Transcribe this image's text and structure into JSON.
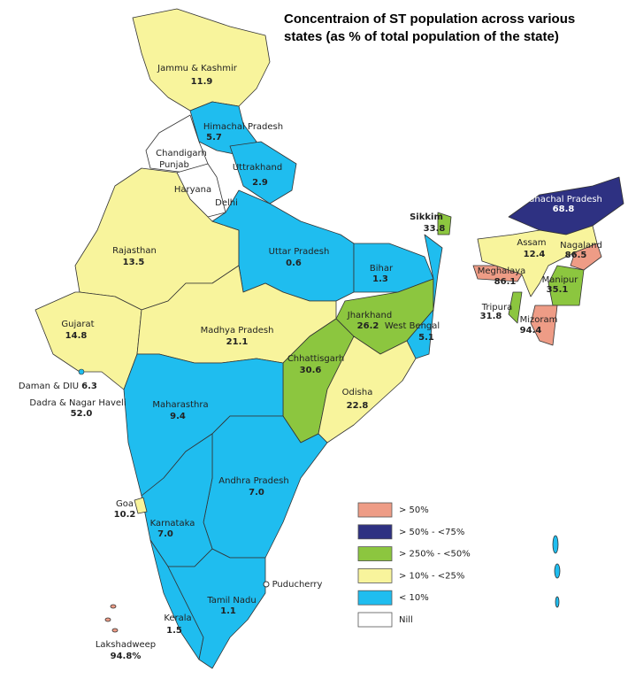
{
  "title": [
    "Concentraion of ST population across various",
    "states (as % of total population of the state)"
  ],
  "states": [
    {
      "name": "Jammu & Kashmir",
      "value": "11.9"
    },
    {
      "name": "Himachal Pradesh",
      "value": "5.7"
    },
    {
      "name": "Chandigarh"
    },
    {
      "name": "Punjab"
    },
    {
      "name": "Uttrakhand",
      "value": "2.9"
    },
    {
      "name": "Haryana"
    },
    {
      "name": "Delhi"
    },
    {
      "name": "Rajasthan",
      "value": "13.5"
    },
    {
      "name": "Uttar Pradesh",
      "value": "0.6"
    },
    {
      "name": "Sikkim",
      "value": "33.8"
    },
    {
      "name": "Arunachal Pradesh",
      "value": "68.8"
    },
    {
      "name": "Assam",
      "value": "12.4"
    },
    {
      "name": "Nagaland",
      "value": "86.5"
    },
    {
      "name": "Meghalaya",
      "value": "86.1"
    },
    {
      "name": "Bihar",
      "value": "1.3"
    },
    {
      "name": "Manipur",
      "value": "35.1"
    },
    {
      "name": "Tripura",
      "value": "31.8"
    },
    {
      "name": "Mizoram",
      "value": "94.4"
    },
    {
      "name": "Jharkhand",
      "value": "26.2"
    },
    {
      "name": "West Bengal",
      "value": "5.1"
    },
    {
      "name": "Gujarat",
      "value": "14.8"
    },
    {
      "name": "Madhya Pradesh",
      "value": "21.1"
    },
    {
      "name": "Chhattisgarh",
      "value": "30.6"
    },
    {
      "name": "Odisha",
      "value": "22.8"
    },
    {
      "name": "Daman & DIU",
      "value": "6.3"
    },
    {
      "name": "Dadra & Nagar Haveli",
      "value": "52.0"
    },
    {
      "name": "Maharasthra",
      "value": "9.4"
    },
    {
      "name": "Andhra Pradesh",
      "value": "7.0"
    },
    {
      "name": "Goa",
      "value": "10.2"
    },
    {
      "name": "Karnataka",
      "value": "7.0"
    },
    {
      "name": "Puducherry"
    },
    {
      "name": "Tamil Nadu",
      "value": "1.1"
    },
    {
      "name": "Kerala",
      "value": "1.5"
    },
    {
      "name": "Lakshadweep",
      "value": "94.8%"
    }
  ],
  "legend": [
    {
      "label": "> 50%",
      "color": "#ee9c86"
    },
    {
      "label": "> 50% - <75%",
      "color": "#2e3182"
    },
    {
      "label": "> 250% - <50%",
      "color": "#8cc63f"
    },
    {
      "label": "> 10% - <25%",
      "color": "#f8f49c"
    },
    {
      "label": "< 10%",
      "color": "#1fbdef"
    },
    {
      "label": "Nill",
      "color": "#ffffff"
    }
  ]
}
